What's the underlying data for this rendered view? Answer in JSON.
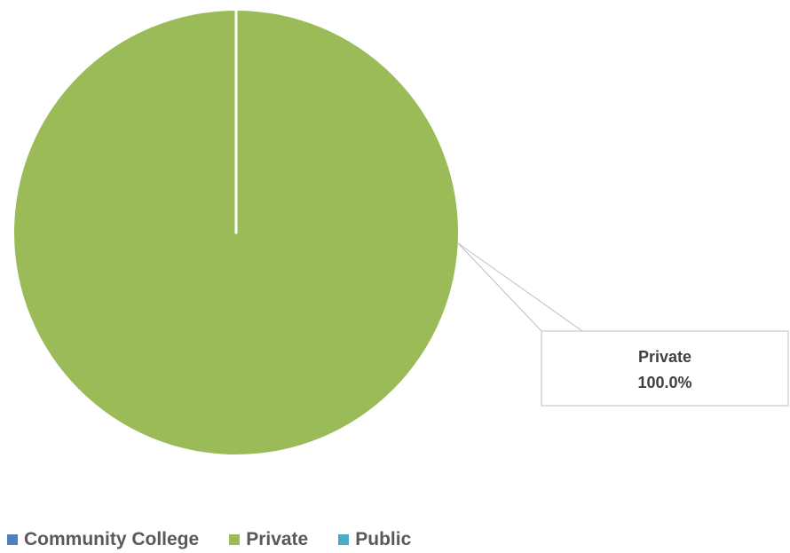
{
  "chart_data": {
    "type": "pie",
    "title": "",
    "slices": [
      {
        "label": "Community College",
        "value": 0.0,
        "color": "#4F81BD"
      },
      {
        "label": "Private",
        "value": 100.0,
        "color": "#9BBB59"
      },
      {
        "label": "Public",
        "value": 0.0,
        "color": "#4BACC6"
      }
    ],
    "data_labels": [
      {
        "category": "Private",
        "percent": "100.0%"
      }
    ],
    "legend": {
      "position": "bottom-left",
      "entries": [
        "Community College",
        "Private",
        "Public"
      ]
    }
  }
}
